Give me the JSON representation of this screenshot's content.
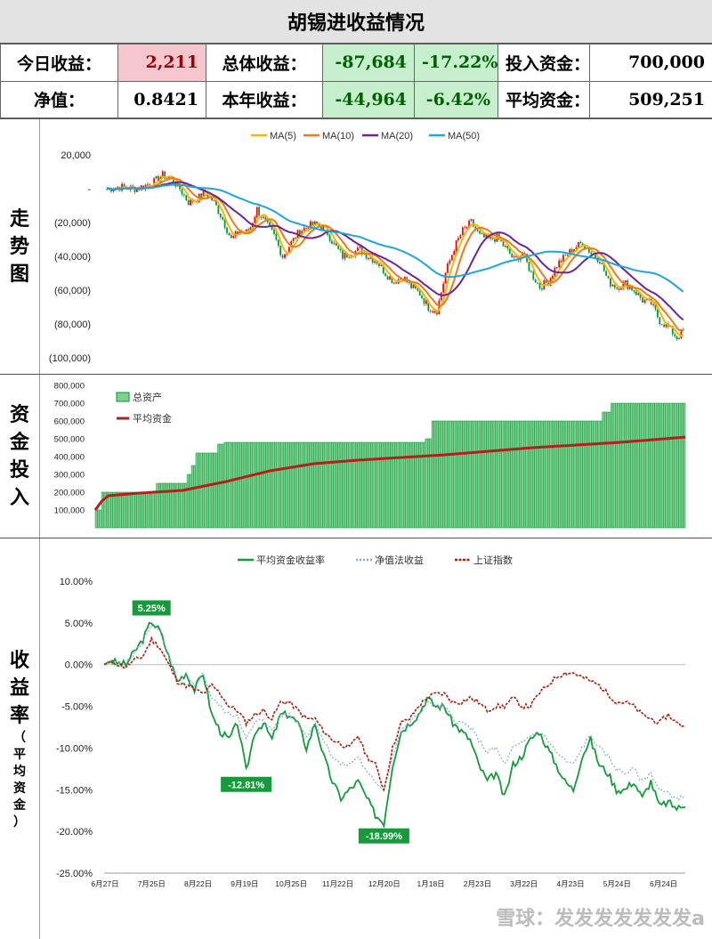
{
  "title": "胡锡进收益情况",
  "stats": {
    "today_label": "今日收益：",
    "today_value": "2,211",
    "total_label": "总体收益：",
    "total_value": "-87,684",
    "total_pct": "-17.22%",
    "invest_label": "投入资金：",
    "invest_value": "700,000",
    "nav_label": "净值：",
    "nav_value": "0.8421",
    "year_label": "本年收益：",
    "year_value": "-44,964",
    "year_pct": "-6.42%",
    "avg_label": "平均资金：",
    "avg_value": "509,251"
  },
  "side_labels": {
    "trend": [
      "走",
      "势",
      "图"
    ],
    "capital": [
      "资",
      "金",
      "投",
      "入"
    ],
    "returns": [
      "收",
      "益",
      "率"
    ],
    "returns_sub": [
      "（",
      "平",
      "均",
      "资",
      "金",
      "）"
    ]
  },
  "colors": {
    "ma5": "#f5b800",
    "ma10": "#ee7a1e",
    "ma20": "#6b2594",
    "ma50": "#1ca5df",
    "candle_up": "#ff0000",
    "candle_down": "#009640",
    "assets_fill": "#7fcf8d",
    "assets_edge": "#009640",
    "avg_capital": "#b81c1c",
    "avg_return": "#149b3a",
    "nav_return": "#8ea8c8",
    "sse": "#a8200c"
  },
  "watermark": "雪球：发发发发发发发a",
  "chart_data": [
    {
      "type": "candlestick",
      "legend": [
        "MA(5)",
        "MA(10)",
        "MA(20)",
        "MA(50)"
      ],
      "legend_position": "top",
      "ylim": [
        -100000,
        20000
      ],
      "yticks": [
        20000,
        0,
        -20000,
        -40000,
        -60000,
        -80000,
        -100000
      ],
      "ytick_labels": [
        "20,000",
        "-",
        "(20,000)",
        "(40,000)",
        "(60,000)",
        "(80,000)",
        "(100,000)"
      ],
      "anchors_x": [
        0,
        6,
        10,
        14,
        18,
        22,
        26,
        30,
        34,
        38,
        42,
        46,
        50,
        54,
        58,
        62,
        66,
        70,
        74,
        78,
        82,
        86,
        90,
        94,
        98,
        102,
        106,
        110,
        114,
        118,
        122,
        126,
        130,
        134,
        138,
        142,
        146,
        150,
        154,
        158,
        162,
        166,
        170,
        174,
        178,
        182,
        186,
        190,
        194,
        198,
        202,
        206,
        210,
        214,
        218,
        222,
        226,
        230,
        234,
        238,
        242,
        246,
        250,
        254,
        258,
        262,
        266,
        269
      ],
      "anchors_y": [
        0,
        1000,
        500,
        0,
        2000,
        4000,
        8000,
        6000,
        0,
        -8000,
        -6000,
        -2000,
        -8000,
        -18000,
        -30000,
        -25000,
        -26000,
        -12000,
        -20000,
        -28000,
        -40000,
        -32000,
        -25000,
        -22000,
        -21000,
        -24000,
        -33000,
        -40000,
        -38000,
        -36000,
        -40000,
        -43000,
        -50000,
        -55000,
        -52000,
        -58000,
        -62000,
        -70000,
        -72000,
        -50000,
        -35000,
        -25000,
        -20000,
        -28000,
        -30000,
        -29000,
        -35000,
        -42000,
        -38000,
        -50000,
        -58000,
        -55000,
        -45000,
        -40000,
        -35000,
        -32000,
        -38000,
        -42000,
        -55000,
        -58000,
        -56000,
        -60000,
        -66000,
        -68000,
        -78000,
        -82000,
        -88000,
        -84000
      ]
    },
    {
      "type": "bar",
      "legend": [
        "总资产",
        "平均资金"
      ],
      "legend_position": "top-left",
      "ylim": [
        0,
        800000
      ],
      "yticks": [
        100000,
        200000,
        300000,
        400000,
        500000,
        600000,
        700000,
        800000
      ],
      "ytick_labels": [
        "100,000",
        "200,000",
        "300,000",
        "400,000",
        "500,000",
        "600,000",
        "700,000",
        "800,000"
      ],
      "assets_steps": [
        [
          0,
          100000
        ],
        [
          3,
          200000
        ],
        [
          28,
          250000
        ],
        [
          42,
          300000
        ],
        [
          44,
          350000
        ],
        [
          46,
          420000
        ],
        [
          56,
          470000
        ],
        [
          59,
          480000
        ],
        [
          151,
          500000
        ],
        [
          154,
          600000
        ],
        [
          232,
          650000
        ],
        [
          236,
          700000
        ],
        [
          270,
          700000
        ]
      ],
      "avg_capital_anchors": [
        [
          0,
          100000
        ],
        [
          3,
          150000
        ],
        [
          6,
          180000
        ],
        [
          20,
          195000
        ],
        [
          40,
          210000
        ],
        [
          60,
          260000
        ],
        [
          80,
          320000
        ],
        [
          100,
          360000
        ],
        [
          120,
          380000
        ],
        [
          140,
          395000
        ],
        [
          160,
          410000
        ],
        [
          180,
          430000
        ],
        [
          200,
          450000
        ],
        [
          220,
          465000
        ],
        [
          240,
          480000
        ],
        [
          270,
          509251
        ]
      ]
    },
    {
      "type": "line",
      "series": [
        {
          "name": "平均资金收益率",
          "x": [
            0,
            3,
            6,
            10,
            14,
            18,
            22,
            26,
            30,
            34,
            38,
            42,
            46,
            50,
            54,
            58,
            62,
            66,
            70,
            74,
            78,
            82,
            86,
            90,
            94,
            98,
            102,
            106,
            110,
            114,
            118,
            122,
            126,
            130,
            134,
            138,
            142,
            146,
            150,
            154,
            158,
            162,
            166,
            170,
            174,
            178,
            182,
            186,
            190,
            194,
            198,
            202,
            206,
            210,
            214,
            218,
            222,
            226,
            230,
            234,
            238,
            242,
            246,
            250,
            254,
            258,
            262,
            266,
            270
          ],
          "y": [
            0,
            0.5,
            0.2,
            0,
            1.5,
            3,
            5.25,
            4,
            1,
            -2,
            -1,
            -3,
            -1,
            -6,
            -8,
            -9,
            -7,
            -12.81,
            -8,
            -7,
            -9,
            -6,
            -6,
            -7,
            -10,
            -7,
            -11,
            -14,
            -16,
            -15,
            -14,
            -16,
            -18,
            -18.99,
            -12,
            -8,
            -7,
            -6,
            -4,
            -5,
            -5,
            -7,
            -8,
            -9,
            -12,
            -14,
            -13,
            -16,
            -12,
            -11,
            -9,
            -8,
            -10,
            -12,
            -14,
            -15,
            -11,
            -9,
            -12,
            -13,
            -15,
            -15,
            -14,
            -16,
            -14,
            -17,
            -16.5,
            -17.22,
            -17.1
          ]
        },
        {
          "name": "净值法收益",
          "x": [
            0,
            3,
            6,
            10,
            14,
            18,
            22,
            26,
            30,
            34,
            38,
            42,
            46,
            50,
            54,
            58,
            62,
            66,
            70,
            74,
            78,
            82,
            86,
            90,
            94,
            98,
            102,
            106,
            110,
            114,
            118,
            122,
            126,
            130,
            134,
            138,
            142,
            146,
            150,
            154,
            158,
            162,
            166,
            170,
            174,
            178,
            182,
            186,
            190,
            194,
            198,
            202,
            206,
            210,
            214,
            218,
            222,
            226,
            230,
            234,
            238,
            242,
            246,
            250,
            254,
            258,
            262,
            266,
            270
          ],
          "y": [
            0,
            0.5,
            0.2,
            0,
            1.3,
            2.8,
            4.8,
            3.8,
            1,
            -2,
            -1.5,
            -2.5,
            -1,
            -4,
            -5,
            -6,
            -6,
            -9,
            -7,
            -6.5,
            -8,
            -6,
            -6,
            -7,
            -8.5,
            -7,
            -9,
            -11,
            -12,
            -12,
            -11,
            -13,
            -14,
            -15,
            -11,
            -8,
            -7,
            -6,
            -4.5,
            -5,
            -5,
            -6.5,
            -7,
            -7.5,
            -9,
            -10.5,
            -10,
            -12,
            -10,
            -9.5,
            -8.5,
            -8,
            -9,
            -10.5,
            -11.5,
            -12,
            -10,
            -8.5,
            -10,
            -11,
            -12.5,
            -13,
            -12.5,
            -14,
            -13,
            -15,
            -15.5,
            -16,
            -15.9
          ]
        },
        {
          "name": "上证指数",
          "x": [
            0,
            3,
            6,
            10,
            14,
            18,
            22,
            26,
            30,
            34,
            38,
            42,
            46,
            50,
            54,
            58,
            62,
            66,
            70,
            74,
            78,
            82,
            86,
            90,
            94,
            98,
            102,
            106,
            110,
            114,
            118,
            122,
            126,
            130,
            134,
            138,
            142,
            146,
            150,
            154,
            158,
            162,
            166,
            170,
            174,
            178,
            182,
            186,
            190,
            194,
            198,
            202,
            206,
            210,
            214,
            218,
            222,
            226,
            230,
            234,
            238,
            242,
            246,
            250,
            254,
            258,
            262,
            266,
            270
          ],
          "y": [
            0,
            0.3,
            0.1,
            -0.3,
            0.5,
            1,
            3,
            2,
            0,
            -2,
            -2.5,
            -3,
            -3.5,
            -2.5,
            -3.5,
            -5,
            -5.5,
            -7,
            -6,
            -5.5,
            -6.5,
            -4.5,
            -4.5,
            -5.5,
            -6.5,
            -6.5,
            -8,
            -9,
            -9.5,
            -10,
            -8.5,
            -11,
            -12,
            -15,
            -10,
            -7,
            -6.5,
            -5,
            -4,
            -3.5,
            -3.5,
            -4.5,
            -4.5,
            -4,
            -4.5,
            -5.5,
            -5,
            -5,
            -4,
            -5,
            -5,
            -3.5,
            -2.5,
            -1.5,
            -1,
            -1,
            -1.5,
            -2,
            -2.5,
            -3.5,
            -4.5,
            -4.5,
            -5,
            -6,
            -6.5,
            -7,
            -6,
            -7,
            -7.5
          ]
        }
      ],
      "ylim": [
        -25,
        10
      ],
      "yticks": [
        10,
        5,
        0,
        -5,
        -10,
        -15,
        -20,
        -25
      ],
      "ytick_labels": [
        "10.00%",
        "5.00%",
        "0.00%",
        "-5.00%",
        "-10.00%",
        "-15.00%",
        "-20.00%",
        "-25.00%"
      ],
      "xtick_labels": [
        "6月27日",
        "7月25日",
        "8月22日",
        "9月19日",
        "10月25日",
        "11月22日",
        "12月20日",
        "1月18日",
        "2月23日",
        "3月22日",
        "4月23日",
        "5月24日",
        "6月24日"
      ],
      "annotations": [
        {
          "text": "5.25%",
          "x": 22,
          "y": 5.25,
          "place": "above"
        },
        {
          "text": "-12.81%",
          "x": 66,
          "y": -12.81,
          "place": "below"
        },
        {
          "text": "-18.99%",
          "x": 130,
          "y": -18.99,
          "place": "below"
        }
      ],
      "legend_position": "top",
      "grid": false
    }
  ]
}
